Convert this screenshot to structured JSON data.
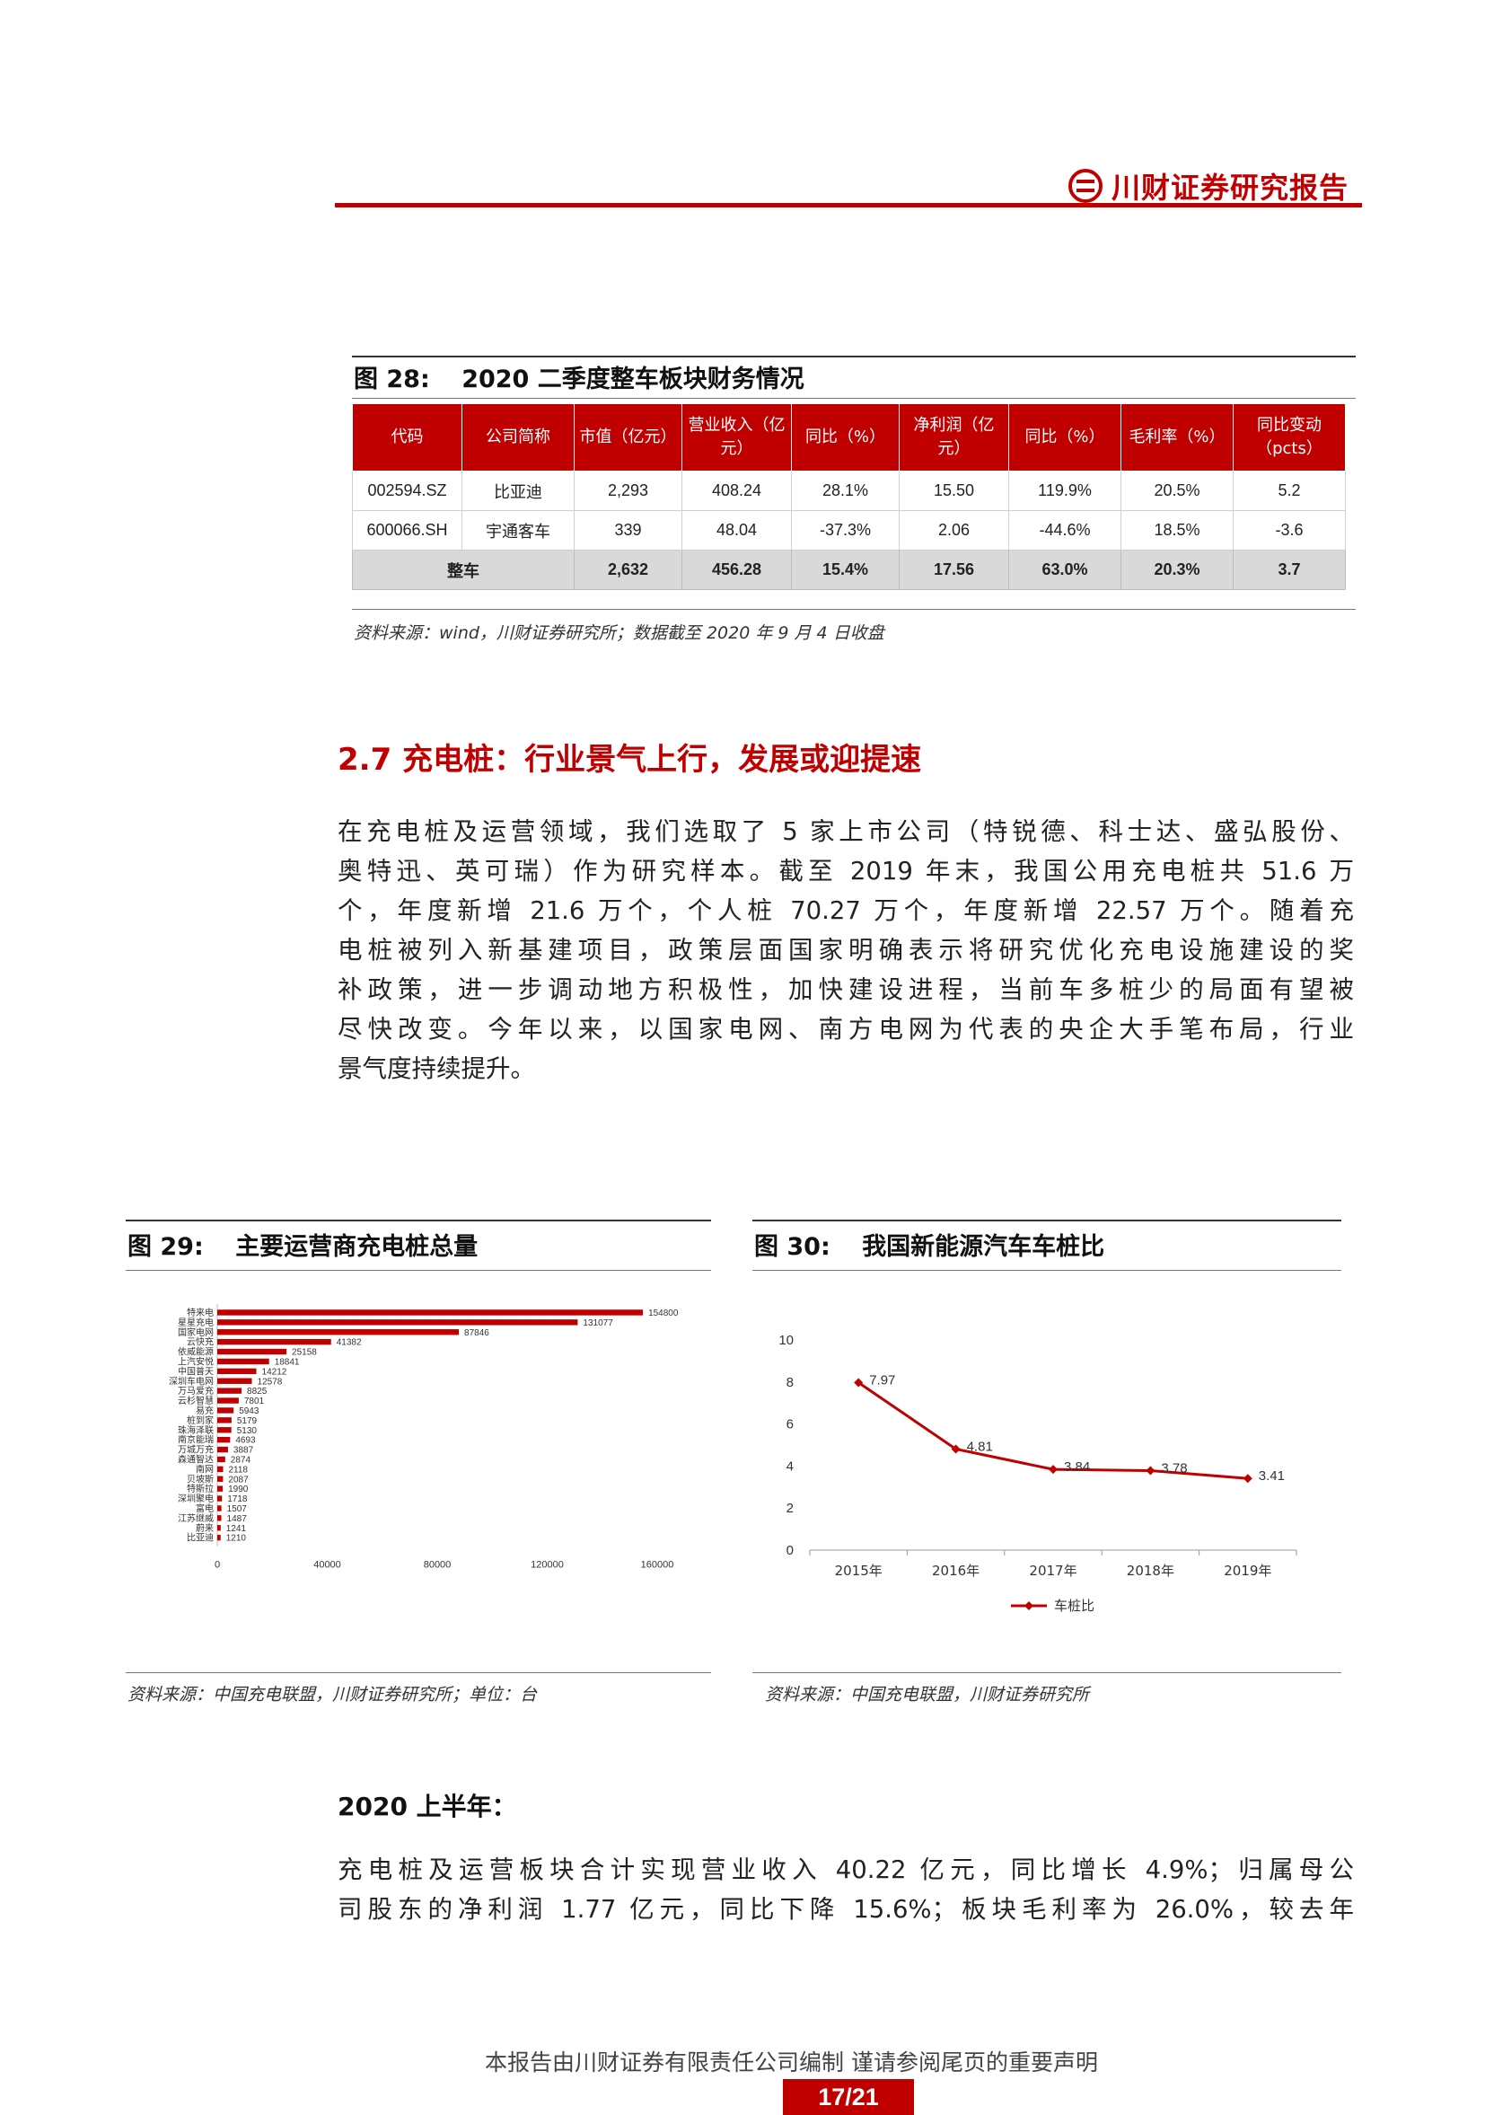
{
  "header": {
    "brand": "川财证券研究报告",
    "brand_color": "#c00000",
    "logo_icon": "chuancai-logo-icon"
  },
  "fig28": {
    "label": "图 28:",
    "title": "2020 二季度整车板块财务情况",
    "columns": [
      "代码",
      "公司简称",
      "市值（亿元）",
      "营业收入（亿元）",
      "同比（%）",
      "净利润（亿元）",
      "同比（%）",
      "毛利率（%）",
      "同比变动（pcts）"
    ],
    "rows": [
      [
        "002594.SZ",
        "比亚迪",
        "2,293",
        "408.24",
        "28.1%",
        "15.50",
        "119.9%",
        "20.5%",
        "5.2"
      ],
      [
        "600066.SH",
        "宇通客车",
        "339",
        "48.04",
        "-37.3%",
        "2.06",
        "-44.6%",
        "18.5%",
        "-3.6"
      ]
    ],
    "total": [
      "整车",
      "2,632",
      "456.28",
      "15.4%",
      "17.56",
      "63.0%",
      "20.3%",
      "3.7"
    ],
    "source": "资料来源：wind，川财证券研究所；数据截至 2020 年 9 月 4 日收盘"
  },
  "section": {
    "heading": "2.7 充电桩：行业景气上行，发展或迎提速",
    "paragraph_lines": [
      "在充电桩及运营领域，我们选取了 5 家上市公司（特锐德、科士达、盛弘股份、",
      "奥特迅、英可瑞）作为研究样本。截至 2019 年末，我国公用充电桩共 51.6 万",
      "个，年度新增 21.6 万个，个人桩 70.27 万个，年度新增 22.57 万个。随着充",
      "电桩被列入新基建项目，政策层面国家明确表示将研究优化充电设施建设的奖",
      "补政策，进一步调动地方积极性，加快建设进程，当前车多桩少的局面有望被",
      "尽快改变。今年以来，以国家电网、南方电网为代表的央企大手笔布局，行业",
      "景气度持续提升。"
    ]
  },
  "fig29": {
    "label": "图 29:",
    "title": "主要运营商充电桩总量",
    "source": "资料来源：中国充电联盟，川财证券研究所；单位：台"
  },
  "fig30": {
    "label": "图 30:",
    "title": "我国新能源汽车车桩比",
    "source": "资料来源：中国充电联盟，川财证券研究所"
  },
  "chart_data": [
    {
      "type": "bar",
      "orientation": "horizontal",
      "categories": [
        "特来电",
        "星星充电",
        "国家电网",
        "云快充",
        "依威能源",
        "上汽安悦",
        "中国普天",
        "深圳车电网",
        "万马爱充",
        "云杉智慧",
        "易充",
        "桩到家",
        "珠海泽联",
        "南京能瑞",
        "万城万充",
        "森通智达",
        "南网",
        "贝坡斯",
        "特斯拉",
        "深圳聚电",
        "富电",
        "江苏继威",
        "蔚来",
        "比亚迪"
      ],
      "values": [
        154800,
        131077,
        87846,
        41382,
        25158,
        18841,
        14212,
        12578,
        8825,
        7801,
        5943,
        5179,
        5130,
        4693,
        3887,
        2874,
        2118,
        2087,
        1990,
        1718,
        1507,
        1487,
        1241,
        1210
      ],
      "xlim": [
        0,
        160000
      ],
      "xticks": [
        0,
        40000,
        80000,
        120000,
        160000
      ],
      "color": "#c00000"
    },
    {
      "type": "line",
      "categories": [
        "2015年",
        "2016年",
        "2017年",
        "2018年",
        "2019年"
      ],
      "series": [
        {
          "name": "车桩比",
          "values": [
            7.97,
            4.81,
            3.84,
            3.78,
            3.41
          ],
          "labels": [
            "7.97",
            "4.81",
            "3.84",
            "3.78",
            "3.41"
          ]
        }
      ],
      "ylim": [
        0,
        10
      ],
      "yticks": [
        0,
        2,
        4,
        6,
        8,
        10
      ],
      "color": "#c00000",
      "legend": "bottom"
    }
  ],
  "sub": {
    "heading": "2020 上半年：",
    "paragraph_lines": [
      "充电桩及运营板块合计实现营业收入 40.22 亿元，同比增长 4.9%；归属母公",
      "司股东的净利润 1.77 亿元，同比下降 15.6%；板块毛利率为 26.0%，较去年"
    ]
  },
  "footer": {
    "note": "本报告由川财证券有限责任公司编制 谨请参阅尾页的重要声明",
    "page": "17/21"
  }
}
